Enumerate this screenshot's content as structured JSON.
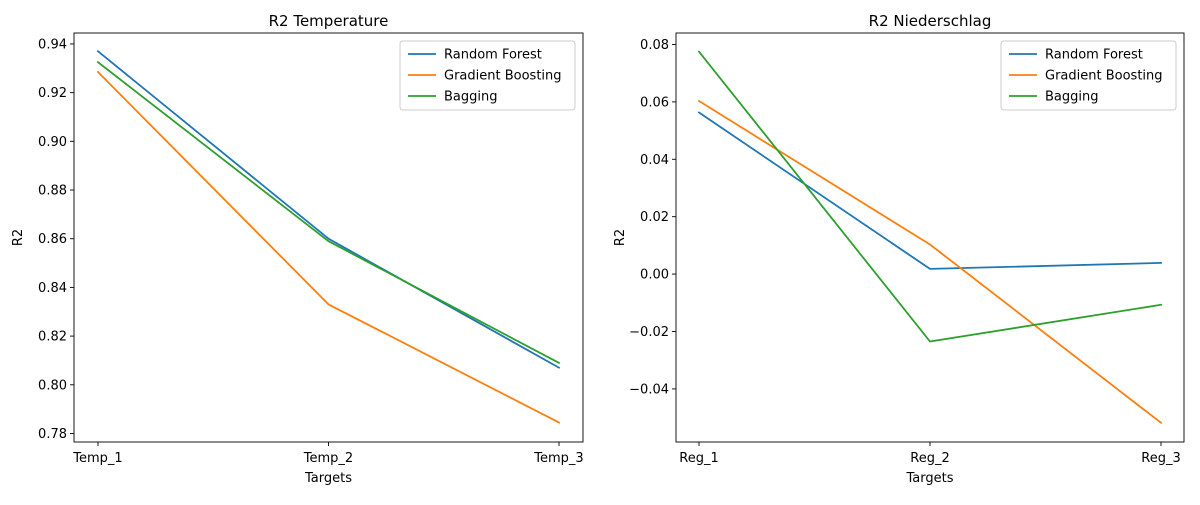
{
  "chart_data": [
    {
      "type": "line",
      "title": "R2 Temperature",
      "xlabel": "Targets",
      "ylabel": "R2",
      "categories": [
        "Temp_1",
        "Temp_2",
        "Temp_3"
      ],
      "ylim": [
        0.7765,
        0.9445
      ],
      "yticks": [
        0.78,
        0.8,
        0.82,
        0.84,
        0.86,
        0.88,
        0.9,
        0.92,
        0.94
      ],
      "ytick_labels": [
        "0.78",
        "0.80",
        "0.82",
        "0.84",
        "0.86",
        "0.88",
        "0.90",
        "0.92",
        "0.94"
      ],
      "legend": "top-right",
      "grid": false,
      "series": [
        {
          "name": "Random Forest",
          "color": "#1f77b4",
          "values": [
            0.937,
            0.86,
            0.807
          ]
        },
        {
          "name": "Gradient Boosting",
          "color": "#ff7f0e",
          "values": [
            0.9285,
            0.833,
            0.7845
          ]
        },
        {
          "name": "Bagging",
          "color": "#2ca02c",
          "values": [
            0.9325,
            0.859,
            0.809
          ]
        }
      ]
    },
    {
      "type": "line",
      "title": "R2 Niederschlag",
      "xlabel": "Targets",
      "ylabel": "R2",
      "categories": [
        "Reg_1",
        "Reg_2",
        "Reg_3"
      ],
      "ylim": [
        -0.0585,
        0.084
      ],
      "yticks": [
        -0.04,
        -0.02,
        0.0,
        0.02,
        0.04,
        0.06,
        0.08
      ],
      "ytick_labels": [
        "−0.04",
        "−0.02",
        "0.00",
        "0.02",
        "0.04",
        "0.06",
        "0.08"
      ],
      "legend": "top-right",
      "grid": false,
      "series": [
        {
          "name": "Random Forest",
          "color": "#1f77b4",
          "values": [
            0.0563,
            0.0018,
            0.0039
          ]
        },
        {
          "name": "Gradient Boosting",
          "color": "#ff7f0e",
          "values": [
            0.0603,
            0.0103,
            -0.0518
          ]
        },
        {
          "name": "Bagging",
          "color": "#2ca02c",
          "values": [
            0.0775,
            -0.0235,
            -0.0107
          ]
        }
      ]
    }
  ]
}
